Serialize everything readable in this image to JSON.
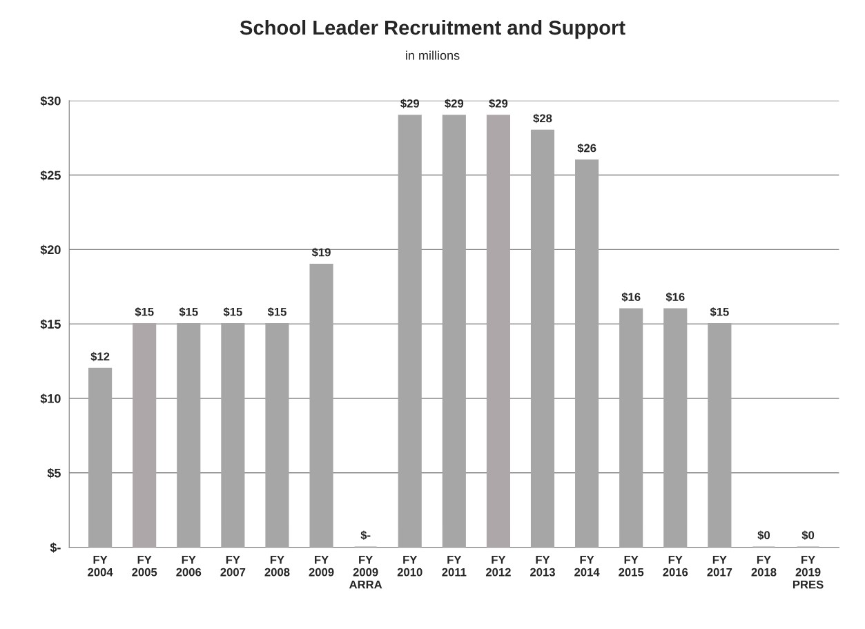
{
  "chart_data": {
    "type": "bar",
    "title": "School Leader Recruitment and Support",
    "subtitle": "in millions",
    "categories": [
      "FY\n2004",
      "FY\n2005",
      "FY\n2006",
      "FY\n2007",
      "FY\n2008",
      "FY\n2009",
      "FY\n2009\nARRA",
      "FY\n2010",
      "FY\n2011",
      "FY\n2012",
      "FY\n2013",
      "FY\n2014",
      "FY\n2015",
      "FY\n2016",
      "FY\n2017",
      "FY\n2018",
      "FY\n2019\nPRES"
    ],
    "values": [
      12,
      15,
      15,
      15,
      15,
      19,
      0,
      29,
      29,
      29,
      28,
      26,
      16,
      16,
      15,
      0,
      0
    ],
    "colors": [
      "#a6a6a6",
      "#aea7a9",
      "#a6a6a6",
      "#a6a6a6",
      "#a6a6a6",
      "#a6a6a6",
      "#a6a6a6",
      "#a6a6a6",
      "#a6a6a6",
      "#aea7a9",
      "#a6a6a6",
      "#a6a6a6",
      "#a6a6a6",
      "#a6a6a6",
      "#a6a6a6",
      "#a6a6a6",
      "#a6a6a6"
    ],
    "value_labels": [
      "$12",
      "$15",
      "$15",
      "$15",
      "$15",
      "$19",
      "$-",
      "$29",
      "$29",
      "$29",
      "$28",
      "$26",
      "$16",
      "$16",
      "$15",
      "$0",
      "$0"
    ],
    "ylim": [
      0,
      30
    ],
    "yticks": [
      {
        "value": 0,
        "label": "$-"
      },
      {
        "value": 5,
        "label": "$5"
      },
      {
        "value": 10,
        "label": "$10"
      },
      {
        "value": 15,
        "label": "$15"
      },
      {
        "value": 20,
        "label": "$20"
      },
      {
        "value": 25,
        "label": "$25"
      },
      {
        "value": 30,
        "label": "$30"
      }
    ],
    "grid": "y"
  }
}
